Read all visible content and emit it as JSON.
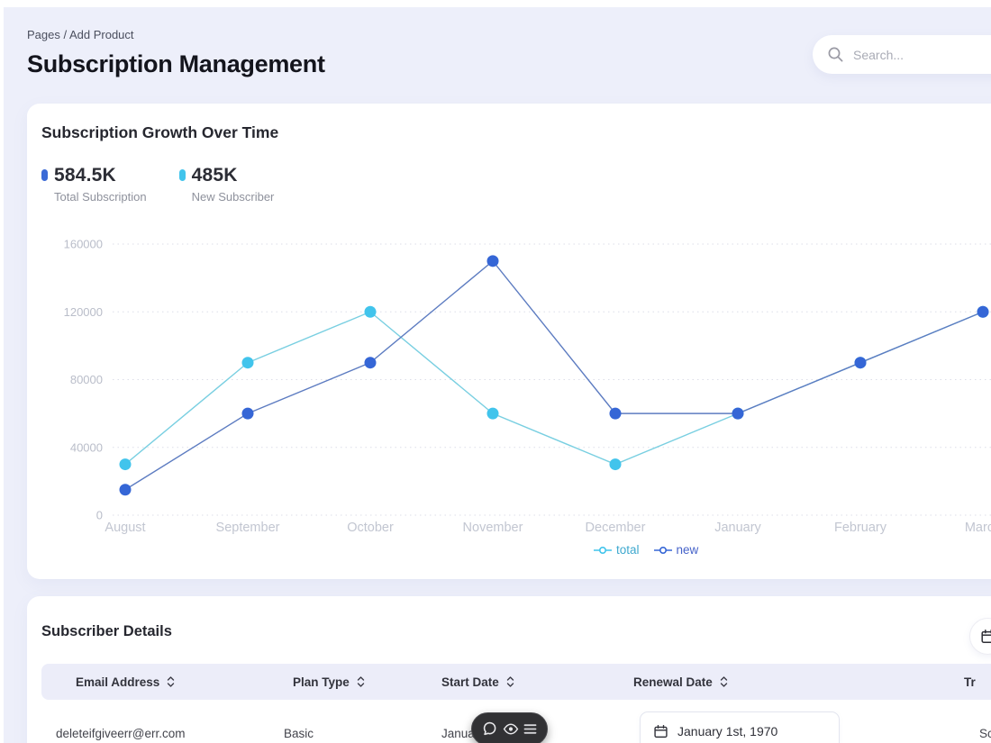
{
  "header": {
    "breadcrumb": "Pages / Add Product",
    "title": "Subscription Management",
    "search_placeholder": "Search..."
  },
  "growth_card": {
    "title": "Subscription Growth Over Time",
    "stats": [
      {
        "value": "584.5K",
        "label": "Total Subscription",
        "color": "#3b6ad6"
      },
      {
        "value": "485K",
        "label": "New Subscriber",
        "color": "#41c4ec"
      }
    ]
  },
  "chart_data": {
    "type": "line",
    "title": "Subscription Growth Over Time",
    "x": [
      "August",
      "September",
      "October",
      "November",
      "December",
      "January",
      "February",
      "March"
    ],
    "series": [
      {
        "name": "total",
        "values": [
          30000,
          90000,
          120000,
          60000,
          30000,
          60000,
          90000,
          120000
        ],
        "point_color": "#41c4ec",
        "line_color": "#79cfe1",
        "label_color": "#3fa9cf"
      },
      {
        "name": "new",
        "values": [
          15000,
          60000,
          90000,
          150000,
          60000,
          60000,
          90000,
          120000
        ],
        "point_color": "#3566d6",
        "line_color": "#5d7cc1",
        "label_color": "#4663c9"
      }
    ],
    "ylim": [
      0,
      160000
    ],
    "yticks": [
      0,
      40000,
      80000,
      120000,
      160000
    ],
    "grid": true,
    "legend_position": "bottom"
  },
  "table": {
    "title": "Subscriber Details",
    "columns": [
      "Email Address",
      "Plan Type",
      "Start Date",
      "Renewal Date",
      "Tr"
    ],
    "rows": [
      {
        "email": "deleteifgiveerr@err.com",
        "plan": "Basic",
        "start_date": "January 1, 1970",
        "renewal_date": "January 1st, 1970",
        "status": "Sc"
      }
    ]
  }
}
